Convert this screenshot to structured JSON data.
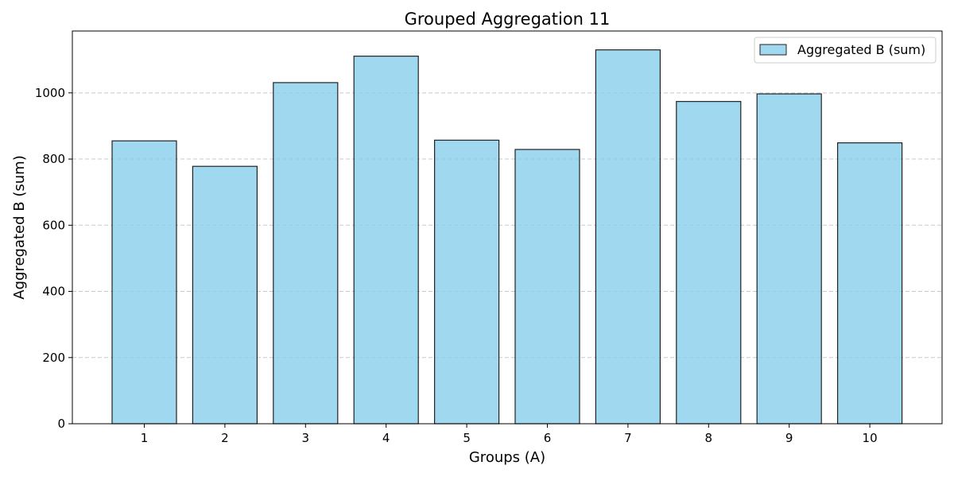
{
  "chart_data": {
    "type": "bar",
    "title": "Grouped Aggregation 11",
    "xlabel": "Groups (A)",
    "ylabel": "Aggregated B (sum)",
    "categories": [
      "1",
      "2",
      "3",
      "4",
      "5",
      "6",
      "7",
      "8",
      "9",
      "10"
    ],
    "series": [
      {
        "name": "Aggregated B (sum)",
        "values": [
          855,
          778,
          1031,
          1111,
          857,
          829,
          1130,
          974,
          997,
          849
        ]
      }
    ],
    "ylim": [
      0,
      1187
    ],
    "yticks": [
      0,
      200,
      400,
      600,
      800,
      1000
    ],
    "grid": "y-dashed",
    "legend": "top-right",
    "colors": {
      "bar_fill": "#87CEEB",
      "bar_edge": "#222222",
      "grid": "#c8c8c8"
    }
  }
}
